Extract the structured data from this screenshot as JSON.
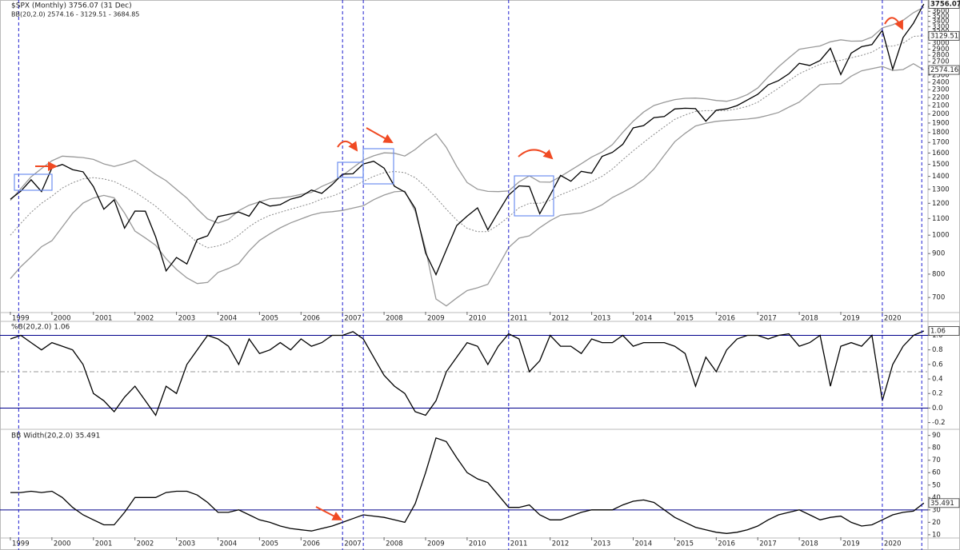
{
  "chart_data": [
    {
      "type": "line",
      "title": "$SPX (Monthly) 3756.07 (31 Dec)",
      "subtitle": "BB(20,2.0) 2574.16 - 3129.51 - 3684.85",
      "log_scale": true,
      "xlim": [
        1998.75,
        2021.1
      ],
      "xticks": [
        1999,
        2000,
        2001,
        2002,
        2003,
        2004,
        2005,
        2006,
        2007,
        2008,
        2009,
        2010,
        2011,
        2012,
        2013,
        2014,
        2015,
        2016,
        2017,
        2018,
        2019,
        2020
      ],
      "ylim": [
        645,
        3790
      ],
      "yticks": [
        700,
        800,
        900,
        1000,
        1100,
        1200,
        1300,
        1400,
        1500,
        1600,
        1700,
        1800,
        1900,
        2000,
        2100,
        2200,
        2300,
        2400,
        2500,
        2600,
        2700,
        2800,
        2900,
        3000,
        3100,
        3200,
        3300,
        3400,
        3500,
        3600,
        3700
      ],
      "x": [
        1999,
        1999.25,
        1999.5,
        1999.75,
        2000,
        2000.25,
        2000.5,
        2000.75,
        2001,
        2001.25,
        2001.5,
        2001.75,
        2002,
        2002.25,
        2002.5,
        2002.75,
        2003,
        2003.25,
        2003.5,
        2003.75,
        2004,
        2004.25,
        2004.5,
        2004.75,
        2005,
        2005.25,
        2005.5,
        2005.75,
        2006,
        2006.25,
        2006.5,
        2006.75,
        2007,
        2007.25,
        2007.5,
        2007.75,
        2008,
        2008.25,
        2008.5,
        2008.75,
        2009,
        2009.25,
        2009.5,
        2009.75,
        2010,
        2010.25,
        2010.5,
        2010.75,
        2011,
        2011.25,
        2011.5,
        2011.75,
        2012,
        2012.25,
        2012.5,
        2012.75,
        2013,
        2013.25,
        2013.5,
        2013.75,
        2014,
        2014.25,
        2014.5,
        2014.75,
        2015,
        2015.25,
        2015.5,
        2015.75,
        2016,
        2016.25,
        2016.5,
        2016.75,
        2017,
        2017.25,
        2017.5,
        2017.75,
        2018,
        2018.25,
        2018.5,
        2018.75,
        2019,
        2019.25,
        2019.5,
        2019.75,
        2020,
        2020.25,
        2020.5,
        2020.75,
        2021
      ],
      "series": [
        {
          "color": "#999999",
          "values": [
            1220,
            1305,
            1397,
            1464,
            1531,
            1572,
            1566,
            1559,
            1543,
            1504,
            1482,
            1505,
            1536,
            1476,
            1416,
            1366,
            1299,
            1237,
            1162,
            1097,
            1072,
            1094,
            1150,
            1187,
            1210,
            1232,
            1237,
            1247,
            1263,
            1278,
            1322,
            1356,
            1408,
            1472,
            1537,
            1575,
            1602,
            1598,
            1573,
            1633,
            1716,
            1786,
            1653,
            1482,
            1352,
            1301,
            1285,
            1283,
            1288,
            1357,
            1404,
            1356,
            1354,
            1399,
            1451,
            1505,
            1564,
            1610,
            1679,
            1802,
            1920,
            2023,
            2100,
            2139,
            2173,
            2189,
            2192,
            2183,
            2162,
            2152,
            2184,
            2236,
            2322,
            2475,
            2622,
            2759,
            2898,
            2927,
            2953,
            3024,
            3060,
            3036,
            3038,
            3107,
            3275,
            3334,
            3420,
            3572,
            3684.85
          ]
        },
        {
          "color": "#888888",
          "dashed": true,
          "values": [
            1000,
            1070,
            1140,
            1200,
            1250,
            1310,
            1350,
            1380,
            1390,
            1380,
            1360,
            1320,
            1280,
            1230,
            1180,
            1120,
            1060,
            1010,
            960,
            930,
            940,
            960,
            1000,
            1050,
            1090,
            1120,
            1140,
            1160,
            1180,
            1200,
            1230,
            1250,
            1280,
            1320,
            1360,
            1400,
            1430,
            1440,
            1430,
            1390,
            1320,
            1240,
            1160,
            1090,
            1040,
            1020,
            1020,
            1060,
            1110,
            1170,
            1200,
            1200,
            1220,
            1260,
            1290,
            1320,
            1360,
            1400,
            1460,
            1540,
            1620,
            1700,
            1780,
            1860,
            1940,
            1990,
            2030,
            2040,
            2040,
            2040,
            2060,
            2090,
            2140,
            2230,
            2320,
            2420,
            2520,
            2590,
            2660,
            2700,
            2720,
            2760,
            2800,
            2850,
            2950,
            2950,
            3000,
            3120,
            3129.51
          ]
        },
        {
          "color": "#999999",
          "values": [
            780,
            835,
            883,
            936,
            969,
            1048,
            1134,
            1201,
            1237,
            1256,
            1238,
            1135,
            1024,
            984,
            944,
            874,
            822,
            783,
            758,
            763,
            808,
            826,
            850,
            914,
            970,
            1008,
            1043,
            1073,
            1097,
            1122,
            1138,
            1144,
            1152,
            1168,
            1183,
            1225,
            1258,
            1282,
            1287,
            1147,
            924,
            694,
            667,
            698,
            728,
            740,
            755,
            837,
            932,
            983,
            996,
            1044,
            1086,
            1121,
            1129,
            1135,
            1156,
            1190,
            1241,
            1278,
            1320,
            1377,
            1460,
            1581,
            1707,
            1791,
            1868,
            1897,
            1918,
            1928,
            1936,
            1944,
            1958,
            1985,
            2018,
            2081,
            2142,
            2253,
            2367,
            2376,
            2380,
            2484,
            2562,
            2594,
            2626,
            2567,
            2580,
            2668,
            2574.16
          ]
        },
        {
          "color": "#000000",
          "values": [
            1229,
            1286,
            1373,
            1283,
            1469,
            1499,
            1455,
            1437,
            1320,
            1160,
            1224,
            1041,
            1148,
            1147,
            990,
            815,
            880,
            848,
            975,
            996,
            1112,
            1126,
            1141,
            1115,
            1212,
            1181,
            1191,
            1229,
            1248,
            1295,
            1270,
            1336,
            1418,
            1421,
            1503,
            1527,
            1468,
            1323,
            1280,
            1166,
            903,
            798,
            919,
            1057,
            1115,
            1169,
            1031,
            1141,
            1258,
            1326,
            1321,
            1131,
            1258,
            1408,
            1362,
            1441,
            1426,
            1569,
            1606,
            1682,
            1848,
            1872,
            1960,
            1972,
            2059,
            2068,
            2063,
            1920,
            2044,
            2060,
            2099,
            2168,
            2239,
            2363,
            2423,
            2519,
            2674,
            2641,
            2718,
            2914,
            2507,
            2834,
            2942,
            2977,
            3231,
            2585,
            3100,
            3363,
            3756.07
          ]
        }
      ],
      "annotations": [
        {
          "text": "3756.07",
          "value": 3756.07
        },
        {
          "text": "3129.51",
          "value": 3129.51
        },
        {
          "text": "2574.16",
          "value": 2574.16
        }
      ]
    },
    {
      "type": "line",
      "title": "%B(20,2.0) 1.06",
      "xlim": [
        1998.75,
        2021.1
      ],
      "ylim": [
        -0.27,
        1.17
      ],
      "yticks": [
        -0.2,
        {
          "value": 0,
          "label": "0.0"
        },
        0.2,
        0.4,
        0.6,
        0.8,
        {
          "value": 1,
          "label": "1.0"
        }
      ],
      "hlines": [
        {
          "value": 1,
          "color": "#00008b"
        },
        {
          "value": 0,
          "color": "#00008b"
        },
        {
          "value": 0.5,
          "color": "#999999",
          "dashed": true
        }
      ],
      "x": [
        1999,
        1999.25,
        1999.5,
        1999.75,
        2000,
        2000.25,
        2000.5,
        2000.75,
        2001,
        2001.25,
        2001.5,
        2001.75,
        2002,
        2002.25,
        2002.5,
        2002.75,
        2003,
        2003.25,
        2003.5,
        2003.75,
        2004,
        2004.25,
        2004.5,
        2004.75,
        2005,
        2005.25,
        2005.5,
        2005.75,
        2006,
        2006.25,
        2006.5,
        2006.75,
        2007,
        2007.25,
        2007.5,
        2007.75,
        2008,
        2008.25,
        2008.5,
        2008.75,
        2009,
        2009.25,
        2009.5,
        2009.75,
        2010,
        2010.25,
        2010.5,
        2010.75,
        2011,
        2011.25,
        2011.5,
        2011.75,
        2012,
        2012.25,
        2012.5,
        2012.75,
        2013,
        2013.25,
        2013.5,
        2013.75,
        2014,
        2014.25,
        2014.5,
        2014.75,
        2015,
        2015.25,
        2015.5,
        2015.75,
        2016,
        2016.25,
        2016.5,
        2016.75,
        2017,
        2017.25,
        2017.5,
        2017.75,
        2018,
        2018.25,
        2018.5,
        2018.75,
        2019,
        2019.25,
        2019.5,
        2019.75,
        2020,
        2020.25,
        2020.5,
        2020.75,
        2021
      ],
      "series": [
        {
          "color": "#000000",
          "values": [
            0.95,
            1.0,
            0.9,
            0.8,
            0.9,
            0.85,
            0.8,
            0.6,
            0.2,
            0.1,
            -0.05,
            0.15,
            0.3,
            0.1,
            -0.1,
            0.3,
            0.2,
            0.6,
            0.8,
            1.0,
            0.95,
            0.85,
            0.6,
            0.95,
            0.75,
            0.8,
            0.9,
            0.8,
            0.95,
            0.85,
            0.9,
            1.0,
            1.0,
            1.05,
            0.95,
            0.7,
            0.45,
            0.3,
            0.2,
            -0.05,
            -0.1,
            0.1,
            0.5,
            0.7,
            0.9,
            0.85,
            0.6,
            0.85,
            1.02,
            0.95,
            0.5,
            0.65,
            1.0,
            0.85,
            0.85,
            0.75,
            0.95,
            0.9,
            0.9,
            1.0,
            0.85,
            0.9,
            0.9,
            0.9,
            0.85,
            0.75,
            0.3,
            0.7,
            0.5,
            0.8,
            0.95,
            1.0,
            1.0,
            0.95,
            1.0,
            1.02,
            0.85,
            0.9,
            1.0,
            0.3,
            0.85,
            0.9,
            0.85,
            1.0,
            0.1,
            0.6,
            0.85,
            1.0,
            1.06
          ]
        }
      ],
      "annotations": [
        {
          "text": "1.06",
          "value": 1.06
        }
      ]
    },
    {
      "type": "line",
      "title": "BB Width(20,2.0) 35.491",
      "xlim": [
        1998.75,
        2021.1
      ],
      "xticks": [
        1999,
        2000,
        2001,
        2002,
        2003,
        2004,
        2005,
        2006,
        2007,
        2008,
        2009,
        2010,
        2011,
        2012,
        2013,
        2014,
        2015,
        2016,
        2017,
        2018,
        2019,
        2020
      ],
      "ylim": [
        8,
        93
      ],
      "yticks": [
        10,
        20,
        30,
        40,
        50,
        60,
        70,
        80,
        90
      ],
      "hlines": [
        {
          "value": 30,
          "color": "#00008b"
        }
      ],
      "x": [
        1999,
        1999.25,
        1999.5,
        1999.75,
        2000,
        2000.25,
        2000.5,
        2000.75,
        2001,
        2001.25,
        2001.5,
        2001.75,
        2002,
        2002.25,
        2002.5,
        2002.75,
        2003,
        2003.25,
        2003.5,
        2003.75,
        2004,
        2004.25,
        2004.5,
        2004.75,
        2005,
        2005.25,
        2005.5,
        2005.75,
        2006,
        2006.25,
        2006.5,
        2006.75,
        2007,
        2007.25,
        2007.5,
        2007.75,
        2008,
        2008.25,
        2008.5,
        2008.75,
        2009,
        2009.25,
        2009.5,
        2009.75,
        2010,
        2010.25,
        2010.5,
        2010.75,
        2011,
        2011.25,
        2011.5,
        2011.75,
        2012,
        2012.25,
        2012.5,
        2012.75,
        2013,
        2013.25,
        2013.5,
        2013.75,
        2014,
        2014.25,
        2014.5,
        2014.75,
        2015,
        2015.25,
        2015.5,
        2015.75,
        2016,
        2016.25,
        2016.5,
        2016.75,
        2017,
        2017.25,
        2017.5,
        2017.75,
        2018,
        2018.25,
        2018.5,
        2018.75,
        2019,
        2019.25,
        2019.5,
        2019.75,
        2020,
        2020.25,
        2020.5,
        2020.75,
        2021
      ],
      "series": [
        {
          "color": "#000000",
          "values": [
            44,
            44,
            45,
            44,
            45,
            40,
            32,
            26,
            22,
            18,
            18,
            28,
            40,
            40,
            40,
            44,
            45,
            45,
            42,
            36,
            28,
            28,
            30,
            26,
            22,
            20,
            17,
            15,
            14,
            13,
            15,
            17,
            20,
            23,
            26,
            25,
            24,
            22,
            20,
            35,
            60,
            88,
            85,
            72,
            60,
            55,
            52,
            42,
            32,
            32,
            34,
            26,
            22,
            22,
            25,
            28,
            30,
            30,
            30,
            34,
            37,
            38,
            36,
            30,
            24,
            20,
            16,
            14,
            12,
            11,
            12,
            14,
            17,
            22,
            26,
            28,
            30,
            26,
            22,
            24,
            25,
            20,
            17,
            18,
            22,
            26,
            28,
            29,
            35.491
          ]
        }
      ],
      "annotations": [
        {
          "text": "35.491",
          "value": 35.491
        }
      ]
    }
  ],
  "vlines": {
    "color": "#1f1fd0",
    "values": [
      1999.2,
      2007.0,
      2007.5,
      2011.0,
      2020.0,
      2020.95
    ]
  }
}
